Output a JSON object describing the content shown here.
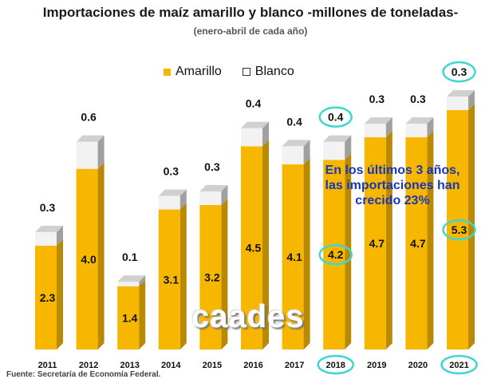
{
  "title": "Importaciones de maíz amarillo y blanco -millones de toneladas-",
  "subtitle": "(enero-abril de cada año)",
  "source": "Fuente: Secretaría de Economía Federal.",
  "note": [
    "En los últimos 3 años,",
    "las importaciones han",
    "crecido 23%"
  ],
  "watermark": "caades",
  "colors": {
    "amarillo_front": "#f7b700",
    "amarillo_side": "#b98a00",
    "amarillo_top": "#ffd54a",
    "blanco_front": "#f2f2f2",
    "blanco_side": "#a0a0a0",
    "highlight": "#3fd6d1",
    "note_text": "#1836b8"
  },
  "chart_data": {
    "type": "bar",
    "stacked": true,
    "categories": [
      "2011",
      "2012",
      "2013",
      "2014",
      "2015",
      "2016",
      "2017",
      "2018",
      "2019",
      "2020",
      "2021"
    ],
    "series": [
      {
        "name": "Amarillo",
        "values": [
          2.3,
          4.0,
          1.4,
          3.1,
          3.2,
          4.5,
          4.1,
          4.2,
          4.7,
          4.7,
          5.3
        ]
      },
      {
        "name": "Blanco",
        "values": [
          0.3,
          0.6,
          0.1,
          0.3,
          0.3,
          0.4,
          0.4,
          0.4,
          0.3,
          0.3,
          0.3
        ]
      }
    ],
    "highlighted": {
      "categories": [
        "2018",
        "2021"
      ],
      "amarillo_labels": [
        "2018",
        "2021"
      ],
      "blanco_labels": [
        "2018",
        "2021"
      ]
    },
    "legend": {
      "position": "top",
      "items": [
        "Amarillo",
        "Blanco"
      ]
    },
    "grid": false,
    "ylim": [
      0,
      6
    ]
  }
}
